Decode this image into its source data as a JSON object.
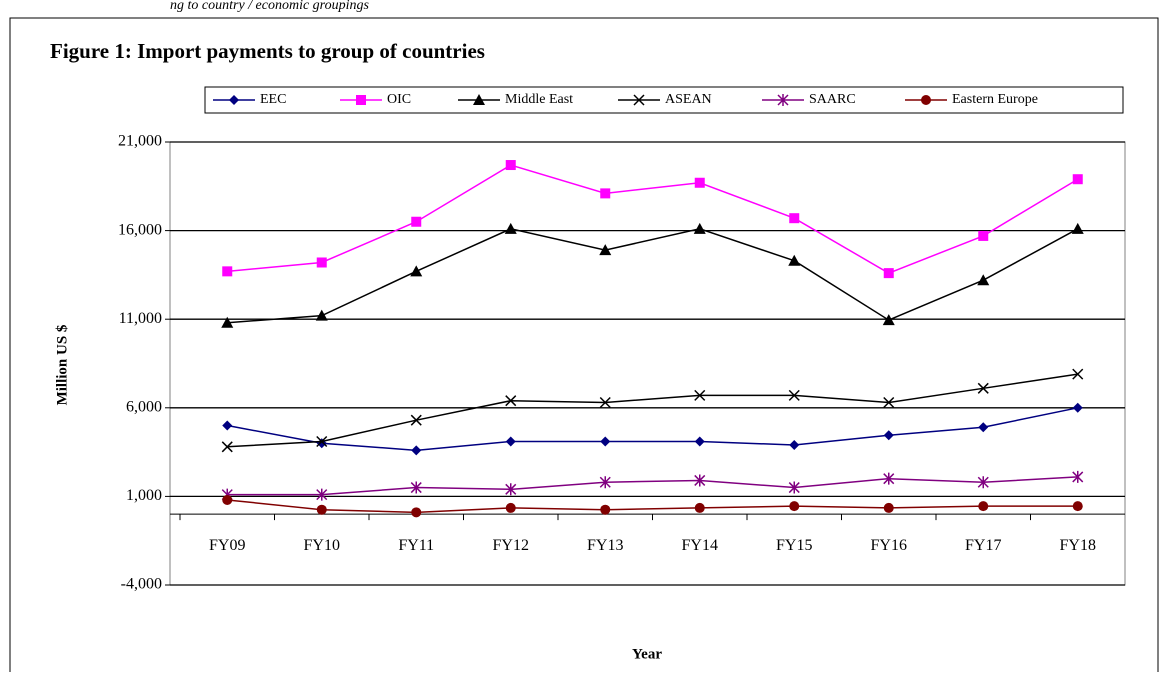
{
  "header_text": "ng to country / economic groupings",
  "chart_data": {
    "type": "line",
    "title": "Figure 1: Import payments to group of countries",
    "x_label": "Year",
    "y_label": "Million US $",
    "categories": [
      "FY09",
      "FY10",
      "FY11",
      "FY12",
      "FY13",
      "FY14",
      "FY15",
      "FY16",
      "FY17",
      "FY18"
    ],
    "ylim": [
      -4000,
      21000
    ],
    "yticks": [
      {
        "value": -4000,
        "label": "-4,000"
      },
      {
        "value": 1000,
        "label": "1,000"
      },
      {
        "value": 6000,
        "label": "6,000"
      },
      {
        "value": 11000,
        "label": "11,000"
      },
      {
        "value": 16000,
        "label": "16,000"
      },
      {
        "value": 21000,
        "label": "21,000"
      }
    ],
    "grid": true,
    "legend": "top",
    "series": [
      {
        "name": "EEC",
        "color": "#000080",
        "marker": "diamond",
        "values": [
          5000,
          4000,
          3600,
          4100,
          4100,
          4100,
          3900,
          4450,
          4900,
          6000
        ]
      },
      {
        "name": "OIC",
        "color": "#ff00ff",
        "marker": "square",
        "values": [
          13700,
          14200,
          16500,
          19700,
          18100,
          18700,
          16700,
          13600,
          15700,
          18900
        ]
      },
      {
        "name": "Middle East",
        "color": "#000000",
        "marker": "triangle",
        "values": [
          10800,
          11200,
          13700,
          16100,
          14900,
          16100,
          14300,
          10950,
          13200,
          16100
        ]
      },
      {
        "name": "ASEAN",
        "color": "#000000",
        "marker": "x",
        "values": [
          3800,
          4100,
          5300,
          6400,
          6300,
          6700,
          6700,
          6300,
          7100,
          7900
        ]
      },
      {
        "name": "SAARC",
        "color": "#800080",
        "marker": "star",
        "values": [
          1100,
          1100,
          1500,
          1400,
          1800,
          1900,
          1500,
          2000,
          1800,
          2100
        ]
      },
      {
        "name": "Eastern Europe",
        "color": "#800000",
        "marker": "circle",
        "values": [
          800,
          250,
          100,
          350,
          250,
          350,
          450,
          350,
          450,
          450
        ]
      }
    ]
  }
}
